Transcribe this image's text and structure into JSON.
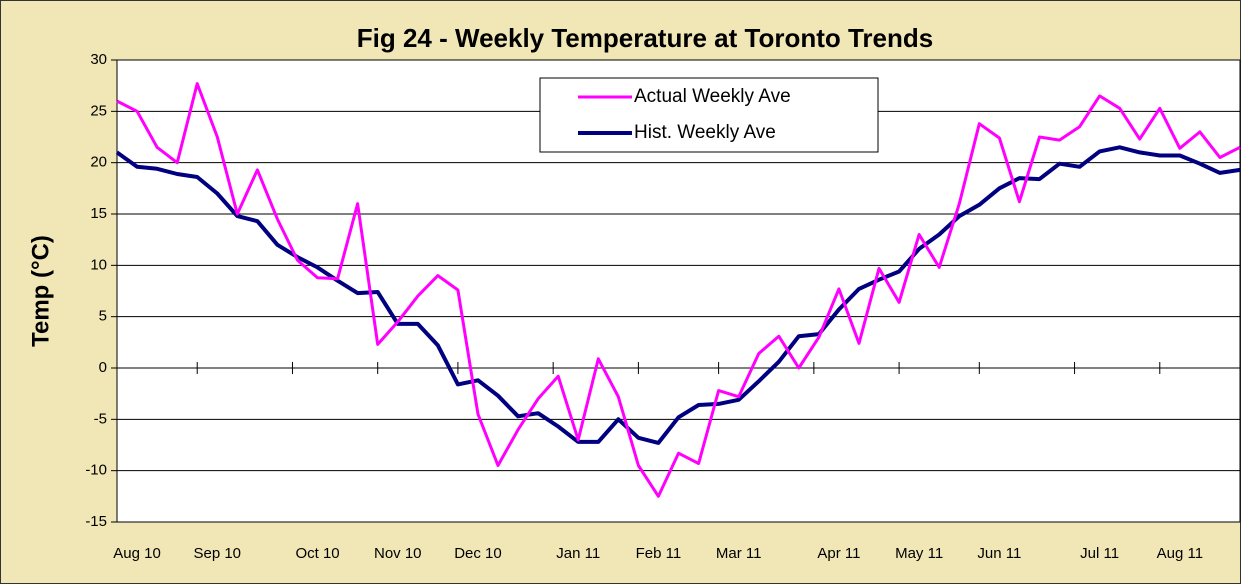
{
  "chart_data": {
    "type": "line",
    "title": "Fig 24 - Weekly Temperature at Toronto Trends",
    "y_label": "Temp (°C)",
    "categories": [
      null,
      "Aug 10",
      null,
      null,
      null,
      "Sep 10",
      null,
      null,
      null,
      null,
      "Oct 10",
      null,
      null,
      null,
      "Nov 10",
      null,
      null,
      null,
      "Dec 10",
      null,
      null,
      null,
      null,
      "Jan 11",
      null,
      null,
      null,
      "Feb 11",
      null,
      null,
      null,
      "Mar 11",
      null,
      null,
      null,
      null,
      "Apr 11",
      null,
      null,
      null,
      "May 11",
      null,
      null,
      null,
      "Jun 11",
      null,
      null,
      null,
      null,
      "Jul 11",
      null,
      null,
      null,
      "Aug 11",
      null,
      null,
      null
    ],
    "series": [
      {
        "name": "Actual Weekly Ave",
        "color": "#ff00ff",
        "values": [
          26,
          25,
          21.5,
          20,
          27.7,
          22.5,
          15,
          19.3,
          14.5,
          10.5,
          8.8,
          8.7,
          16,
          2.3,
          4.5,
          7,
          9,
          7.6,
          -4.5,
          -9.5,
          -6,
          -3,
          -0.8,
          -7,
          0.9,
          -2.8,
          -9.5,
          -12.5,
          -8.3,
          -9.3,
          -2.2,
          -2.8,
          1.4,
          3.1,
          0,
          3,
          7.7,
          2.4,
          9.7,
          6.4,
          13,
          9.8,
          16,
          23.8,
          22.4,
          16.2,
          22.5,
          22.2,
          23.5,
          26.5,
          25.3,
          22.3,
          25.3,
          21.4,
          23,
          20.5,
          21.5
        ]
      },
      {
        "name": "Hist. Weekly Ave",
        "color": "#000080",
        "values": [
          21,
          19.6,
          19.4,
          18.9,
          18.6,
          17,
          14.8,
          14.3,
          12,
          10.8,
          9.8,
          8.5,
          7.3,
          7.4,
          4.3,
          4.3,
          2.2,
          -1.6,
          -1.2,
          -2.7,
          -4.7,
          -4.4,
          -5.7,
          -7.2,
          -7.2,
          -5,
          -6.8,
          -7.3,
          -4.8,
          -3.6,
          -3.5,
          -3.1,
          -1.3,
          0.6,
          3.1,
          3.3,
          5.7,
          7.7,
          8.6,
          9.4,
          11.6,
          13,
          14.8,
          15.9,
          17.5,
          18.5,
          18.4,
          19.9,
          19.6,
          21.1,
          21.5,
          21,
          20.7,
          20.7,
          19.9,
          19,
          19.3
        ]
      }
    ],
    "ylim": [
      -15,
      30
    ],
    "yticks": [
      -15,
      -10,
      -5,
      0,
      5,
      10,
      15,
      20,
      25,
      30
    ],
    "grid": true,
    "legend": "top"
  }
}
